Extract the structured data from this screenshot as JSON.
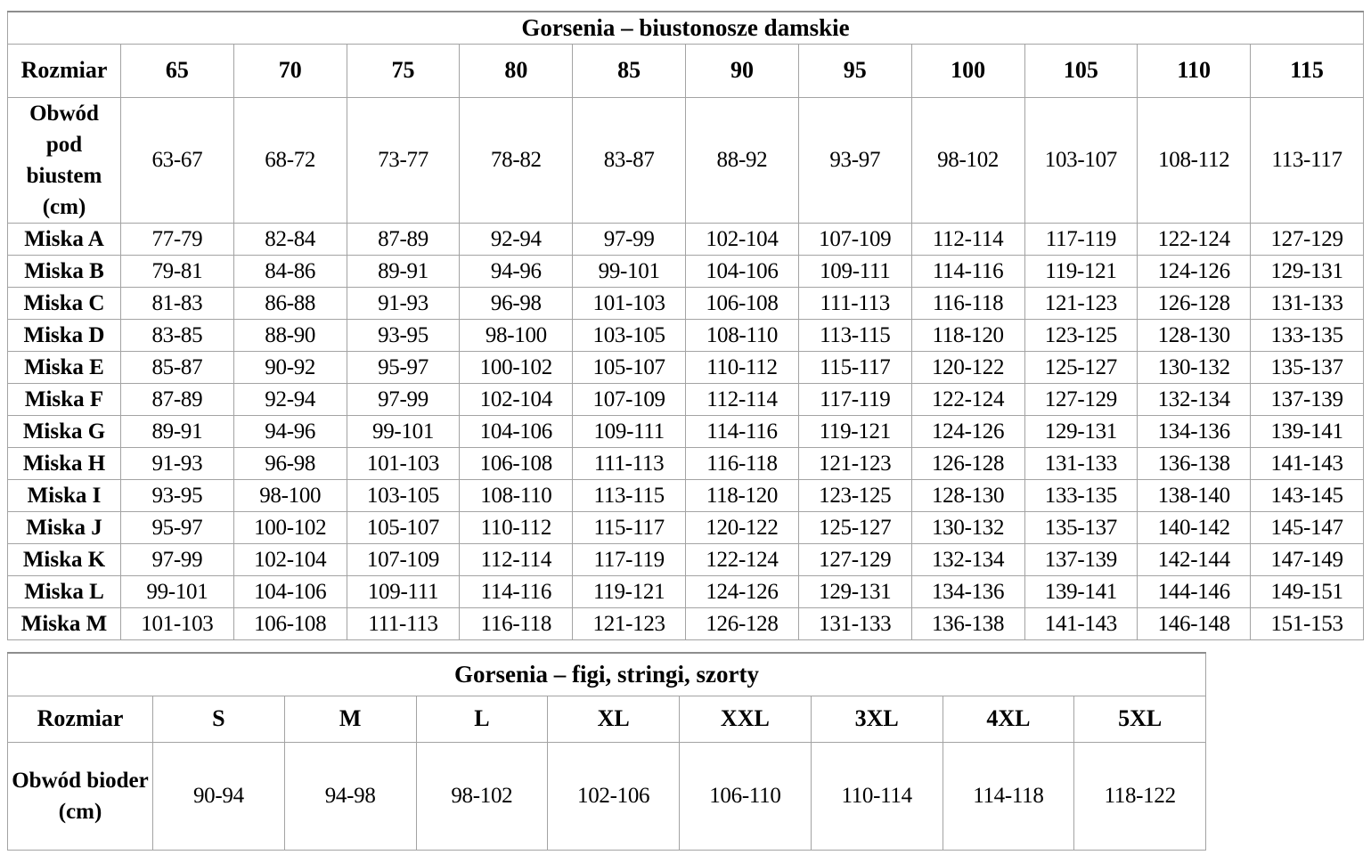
{
  "colors": {
    "border": "#a3a3a3",
    "border_strong": "#8d8d8d",
    "text": "#000000",
    "background": "#ffffff"
  },
  "tables": [
    {
      "title": "Gorsenia – biustonosze damskie",
      "corner_label": "Rozmiar",
      "columns": [
        "65",
        "70",
        "75",
        "80",
        "85",
        "90",
        "95",
        "100",
        "105",
        "110",
        "115"
      ],
      "rows": [
        {
          "label": "Obwód pod biustem (cm)",
          "cells": [
            "63-67",
            "68-72",
            "73-77",
            "78-82",
            "83-87",
            "88-92",
            "93-97",
            "98-102",
            "103-107",
            "108-112",
            "113-117"
          ]
        },
        {
          "label": "Miska A",
          "cells": [
            "77-79",
            "82-84",
            "87-89",
            "92-94",
            "97-99",
            "102-104",
            "107-109",
            "112-114",
            "117-119",
            "122-124",
            "127-129"
          ]
        },
        {
          "label": "Miska B",
          "cells": [
            "79-81",
            "84-86",
            "89-91",
            "94-96",
            "99-101",
            "104-106",
            "109-111",
            "114-116",
            "119-121",
            "124-126",
            "129-131"
          ]
        },
        {
          "label": "Miska C",
          "cells": [
            "81-83",
            "86-88",
            "91-93",
            "96-98",
            "101-103",
            "106-108",
            "111-113",
            "116-118",
            "121-123",
            "126-128",
            "131-133"
          ]
        },
        {
          "label": "Miska D",
          "cells": [
            "83-85",
            "88-90",
            "93-95",
            "98-100",
            "103-105",
            "108-110",
            "113-115",
            "118-120",
            "123-125",
            "128-130",
            "133-135"
          ]
        },
        {
          "label": "Miska E",
          "cells": [
            "85-87",
            "90-92",
            "95-97",
            "100-102",
            "105-107",
            "110-112",
            "115-117",
            "120-122",
            "125-127",
            "130-132",
            "135-137"
          ]
        },
        {
          "label": "Miska F",
          "cells": [
            "87-89",
            "92-94",
            "97-99",
            "102-104",
            "107-109",
            "112-114",
            "117-119",
            "122-124",
            "127-129",
            "132-134",
            "137-139"
          ]
        },
        {
          "label": "Miska G",
          "cells": [
            "89-91",
            "94-96",
            "99-101",
            "104-106",
            "109-111",
            "114-116",
            "119-121",
            "124-126",
            "129-131",
            "134-136",
            "139-141"
          ]
        },
        {
          "label": "Miska H",
          "cells": [
            "91-93",
            "96-98",
            "101-103",
            "106-108",
            "111-113",
            "116-118",
            "121-123",
            "126-128",
            "131-133",
            "136-138",
            "141-143"
          ]
        },
        {
          "label": "Miska I",
          "cells": [
            "93-95",
            "98-100",
            "103-105",
            "108-110",
            "113-115",
            "118-120",
            "123-125",
            "128-130",
            "133-135",
            "138-140",
            "143-145"
          ]
        },
        {
          "label": "Miska J",
          "cells": [
            "95-97",
            "100-102",
            "105-107",
            "110-112",
            "115-117",
            "120-122",
            "125-127",
            "130-132",
            "135-137",
            "140-142",
            "145-147"
          ]
        },
        {
          "label": "Miska K",
          "cells": [
            "97-99",
            "102-104",
            "107-109",
            "112-114",
            "117-119",
            "122-124",
            "127-129",
            "132-134",
            "137-139",
            "142-144",
            "147-149"
          ]
        },
        {
          "label": "Miska L",
          "cells": [
            "99-101",
            "104-106",
            "109-111",
            "114-116",
            "119-121",
            "124-126",
            "129-131",
            "134-136",
            "139-141",
            "144-146",
            "149-151"
          ]
        },
        {
          "label": "Miska M",
          "cells": [
            "101-103",
            "106-108",
            "111-113",
            "116-118",
            "121-123",
            "126-128",
            "131-133",
            "136-138",
            "141-143",
            "146-148",
            "151-153"
          ]
        }
      ]
    },
    {
      "title": "Gorsenia – figi, stringi, szorty",
      "corner_label": "Rozmiar",
      "columns": [
        "S",
        "M",
        "L",
        "XL",
        "XXL",
        "3XL",
        "4XL",
        "5XL"
      ],
      "rows": [
        {
          "label": "Obwód bioder (cm)",
          "cells": [
            "90-94",
            "94-98",
            "98-102",
            "102-106",
            "106-110",
            "110-114",
            "114-118",
            "118-122"
          ]
        }
      ]
    }
  ]
}
